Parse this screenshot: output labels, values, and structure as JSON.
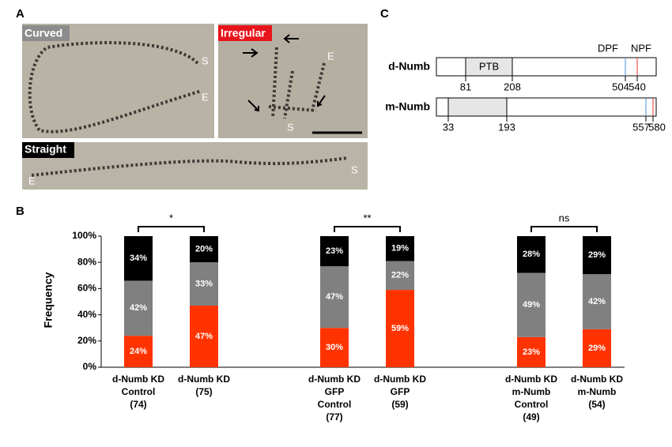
{
  "panel_a": {
    "label": "A",
    "curved": "Curved",
    "irregular": "Irregular",
    "straight": "Straight",
    "start": "S",
    "end": "E"
  },
  "panel_b": {
    "label": "B"
  },
  "chart_data": {
    "type": "stacked-bar",
    "ylabel": "Frequency",
    "categories": [
      [
        "d-Numb KD",
        "Control",
        "(74)"
      ],
      [
        "d-Numb KD",
        "(75)"
      ],
      [
        "d-Numb KD",
        "GFP",
        "Control",
        "(77)"
      ],
      [
        "d-Numb KD",
        "GFP",
        "(59)"
      ],
      [
        "d-Numb KD",
        "m-Numb",
        "Control",
        "(49)"
      ],
      [
        "d-Numb KD",
        "m-Numb",
        "(54)"
      ]
    ],
    "series": [
      {
        "color": "#ff3300",
        "values": [
          24,
          47,
          30,
          59,
          23,
          29
        ],
        "value_labels": [
          "24%",
          "47%",
          "30%",
          "59%",
          "23%",
          "29%"
        ]
      },
      {
        "color": "#808080",
        "values": [
          42,
          33,
          47,
          22,
          49,
          42
        ],
        "value_labels": [
          "42%",
          "33%",
          "47%",
          "22%",
          "49%",
          "42%"
        ]
      },
      {
        "color": "#000000",
        "values": [
          34,
          20,
          23,
          19,
          28,
          29
        ],
        "value_labels": [
          "34%",
          "20%",
          "23%",
          "19%",
          "28%",
          "29%"
        ]
      }
    ],
    "ylim": [
      0,
      100
    ],
    "yticks": [
      {
        "value": 0,
        "label": "0%"
      },
      {
        "value": 20,
        "label": "20%"
      },
      {
        "value": 40,
        "label": "40%"
      },
      {
        "value": 60,
        "label": "60%"
      },
      {
        "value": 80,
        "label": "80%"
      },
      {
        "value": 100,
        "label": "100%"
      }
    ],
    "significance": [
      "*",
      "**",
      "ns"
    ]
  },
  "panel_c": {
    "label": "C",
    "motif_1": "DPF",
    "motif_2": "NPF",
    "proteins": [
      {
        "name": "d-Numb",
        "domain": "PTB",
        "positions": [
          "81",
          "208",
          "504",
          "540"
        ]
      },
      {
        "name": "m-Numb",
        "positions": [
          "33",
          "193",
          "557",
          "580"
        ]
      }
    ]
  }
}
